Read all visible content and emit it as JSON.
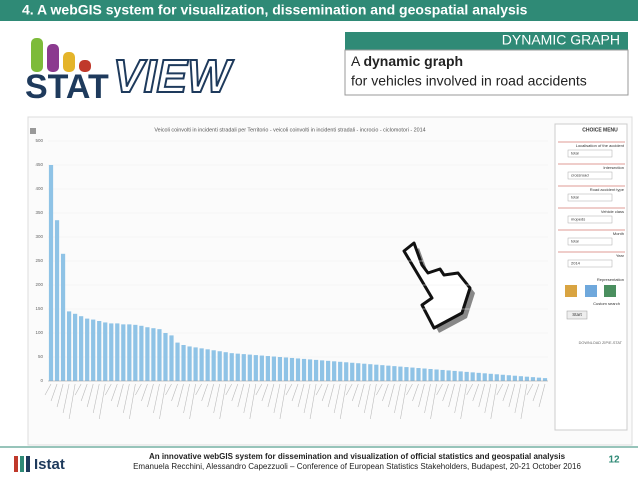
{
  "header": {
    "title": "4. A webGIS system for visualization, dissemination and geospatial analysis"
  },
  "logo": {
    "stat": "STAT",
    "view": "VIEW"
  },
  "callout": {
    "heading": "DYNAMIC GRAPH",
    "text": [
      "A ",
      "dynamic graph",
      " for vehicles involved in road accidents"
    ]
  },
  "screenshot": {
    "chart": {
      "title": "Veicoli coinvolti in incidenti stradali per Territorio - veicoli coinvolti in incidenti stradali - incrocio - ciclomotori - 2014",
      "ylim": [
        0,
        500
      ],
      "yticks": [
        0,
        50,
        100,
        150,
        200,
        250,
        300,
        350,
        400,
        450,
        500
      ],
      "color": "#8fc3e6",
      "values": [
        450,
        335,
        265,
        145,
        140,
        135,
        130,
        128,
        125,
        122,
        120,
        120,
        118,
        118,
        117,
        115,
        112,
        110,
        108,
        100,
        95,
        80,
        75,
        72,
        70,
        68,
        66,
        64,
        62,
        60,
        58,
        57,
        56,
        55,
        54,
        53,
        52,
        51,
        50,
        49,
        48,
        47,
        46,
        45,
        44,
        43,
        42,
        41,
        40,
        39,
        38,
        37,
        36,
        35,
        34,
        33,
        32,
        31,
        30,
        29,
        28,
        27,
        26,
        25,
        24,
        23,
        22,
        21,
        20,
        19,
        18,
        17,
        16,
        15,
        14,
        13,
        12,
        11,
        10,
        9,
        8,
        7,
        6
      ]
    },
    "menu": {
      "title": "CHOICE MENU",
      "fields": [
        {
          "label": "Localisation of the accident",
          "value": "total"
        },
        {
          "label": "Intersection",
          "value": "crossroad"
        },
        {
          "label": "Road accident type",
          "value": "total"
        },
        {
          "label": "Vehicle class",
          "value": "mopeds"
        },
        {
          "label": "Month",
          "value": "total"
        },
        {
          "label": "Year",
          "value": "2014"
        }
      ],
      "representation": "Representation",
      "custom_search": "Custom search",
      "start": "Start",
      "download": "DOWNLOAD ZIP/E-STAT"
    }
  },
  "footer": {
    "line1": "An innovative webGIS system for dissemination and visualization of official statistics and geospatial analysis",
    "line2": "Emanuela Recchini, Alessandro Capezzuoli – Conference of European Statistics Stakeholders, Budapest, 20-21 October 2016",
    "page": "12",
    "brand": "Istat"
  }
}
